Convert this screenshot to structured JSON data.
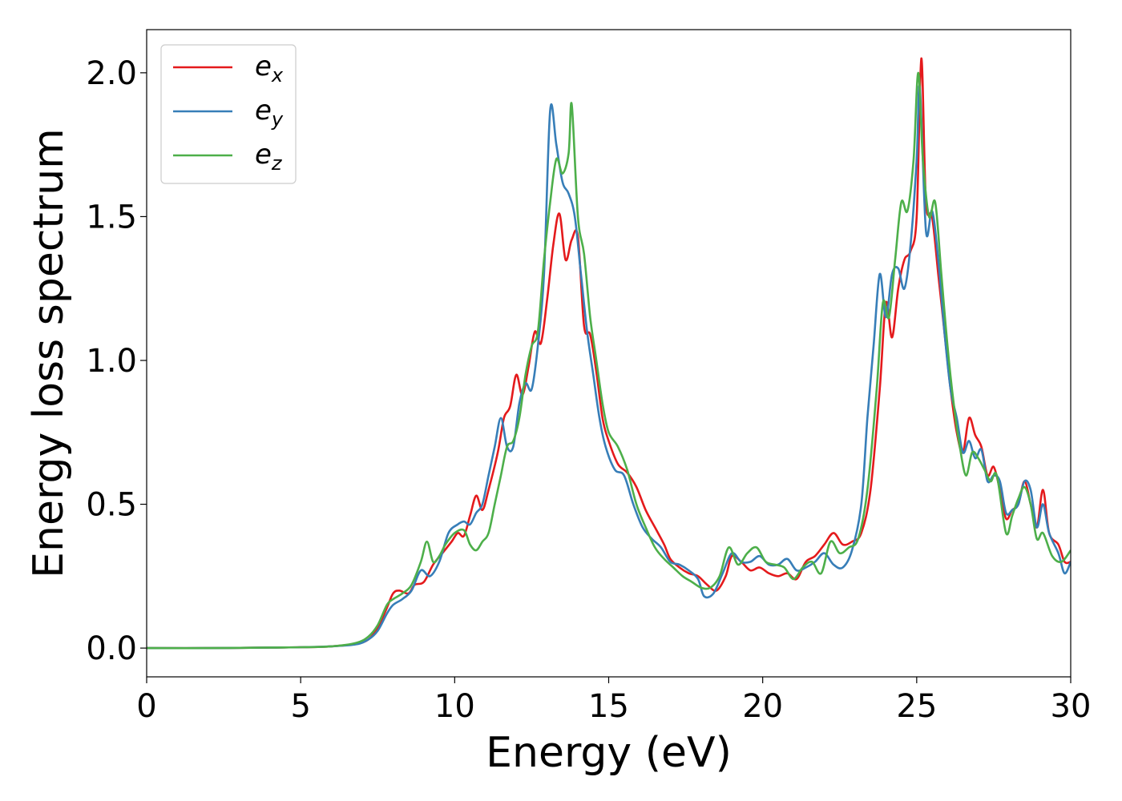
{
  "chart_data": {
    "type": "line",
    "xlabel": "Energy (eV)",
    "ylabel": "Energy loss spectrum",
    "xlim": [
      0,
      30
    ],
    "ylim": [
      -0.1,
      2.15
    ],
    "xticks": [
      "0",
      "5",
      "10",
      "15",
      "20",
      "25",
      "30"
    ],
    "yticks": [
      "0.0",
      "0.5",
      "1.0",
      "1.5",
      "2.0"
    ],
    "legend_position": "top-left",
    "series": [
      {
        "name": "e_x",
        "base": "e",
        "sub": "x",
        "color": "#e41a1c",
        "points": [
          [
            0,
            0
          ],
          [
            2,
            0
          ],
          [
            4,
            0.002
          ],
          [
            5,
            0.003
          ],
          [
            6,
            0.006
          ],
          [
            6.8,
            0.015
          ],
          [
            7.2,
            0.03
          ],
          [
            7.5,
            0.07
          ],
          [
            7.8,
            0.14
          ],
          [
            8.0,
            0.19
          ],
          [
            8.2,
            0.2
          ],
          [
            8.5,
            0.19
          ],
          [
            8.7,
            0.22
          ],
          [
            9.0,
            0.23
          ],
          [
            9.3,
            0.29
          ],
          [
            9.6,
            0.33
          ],
          [
            9.9,
            0.37
          ],
          [
            10.1,
            0.4
          ],
          [
            10.3,
            0.39
          ],
          [
            10.5,
            0.46
          ],
          [
            10.7,
            0.53
          ],
          [
            10.9,
            0.48
          ],
          [
            11.1,
            0.55
          ],
          [
            11.4,
            0.68
          ],
          [
            11.6,
            0.8
          ],
          [
            11.8,
            0.84
          ],
          [
            12.0,
            0.95
          ],
          [
            12.2,
            0.88
          ],
          [
            12.4,
            0.98
          ],
          [
            12.6,
            1.1
          ],
          [
            12.8,
            1.06
          ],
          [
            13.0,
            1.21
          ],
          [
            13.2,
            1.4
          ],
          [
            13.4,
            1.51
          ],
          [
            13.6,
            1.35
          ],
          [
            13.8,
            1.42
          ],
          [
            14.0,
            1.43
          ],
          [
            14.2,
            1.12
          ],
          [
            14.4,
            1.09
          ],
          [
            14.6,
            0.96
          ],
          [
            14.8,
            0.8
          ],
          [
            15.0,
            0.72
          ],
          [
            15.3,
            0.64
          ],
          [
            15.6,
            0.61
          ],
          [
            15.9,
            0.56
          ],
          [
            16.2,
            0.48
          ],
          [
            16.5,
            0.42
          ],
          [
            16.8,
            0.36
          ],
          [
            17.0,
            0.31
          ],
          [
            17.3,
            0.28
          ],
          [
            17.6,
            0.26
          ],
          [
            17.9,
            0.25
          ],
          [
            18.2,
            0.22
          ],
          [
            18.5,
            0.2
          ],
          [
            18.8,
            0.25
          ],
          [
            19.0,
            0.32
          ],
          [
            19.3,
            0.3
          ],
          [
            19.6,
            0.27
          ],
          [
            19.9,
            0.28
          ],
          [
            20.2,
            0.26
          ],
          [
            20.5,
            0.25
          ],
          [
            20.8,
            0.26
          ],
          [
            21.1,
            0.24
          ],
          [
            21.4,
            0.3
          ],
          [
            21.7,
            0.32
          ],
          [
            22.0,
            0.36
          ],
          [
            22.3,
            0.4
          ],
          [
            22.6,
            0.36
          ],
          [
            22.9,
            0.37
          ],
          [
            23.2,
            0.4
          ],
          [
            23.5,
            0.55
          ],
          [
            23.8,
            0.9
          ],
          [
            24.0,
            1.2
          ],
          [
            24.2,
            1.08
          ],
          [
            24.4,
            1.25
          ],
          [
            24.6,
            1.35
          ],
          [
            24.8,
            1.38
          ],
          [
            25.0,
            1.5
          ],
          [
            25.15,
            2.05
          ],
          [
            25.3,
            1.55
          ],
          [
            25.5,
            1.5
          ],
          [
            25.7,
            1.3
          ],
          [
            25.9,
            1.1
          ],
          [
            26.1,
            0.9
          ],
          [
            26.3,
            0.75
          ],
          [
            26.5,
            0.68
          ],
          [
            26.7,
            0.8
          ],
          [
            26.9,
            0.74
          ],
          [
            27.1,
            0.7
          ],
          [
            27.3,
            0.6
          ],
          [
            27.5,
            0.63
          ],
          [
            27.7,
            0.55
          ],
          [
            27.9,
            0.45
          ],
          [
            28.1,
            0.48
          ],
          [
            28.3,
            0.5
          ],
          [
            28.5,
            0.58
          ],
          [
            28.7,
            0.5
          ],
          [
            28.9,
            0.42
          ],
          [
            29.1,
            0.55
          ],
          [
            29.3,
            0.4
          ],
          [
            29.6,
            0.36
          ],
          [
            29.8,
            0.3
          ],
          [
            30,
            0.3
          ]
        ]
      },
      {
        "name": "e_y",
        "base": "e",
        "sub": "y",
        "color": "#377eb8",
        "points": [
          [
            0,
            0
          ],
          [
            2,
            0
          ],
          [
            4,
            0.002
          ],
          [
            5,
            0.003
          ],
          [
            6,
            0.006
          ],
          [
            6.8,
            0.013
          ],
          [
            7.2,
            0.03
          ],
          [
            7.5,
            0.06
          ],
          [
            7.8,
            0.12
          ],
          [
            8.0,
            0.15
          ],
          [
            8.3,
            0.17
          ],
          [
            8.6,
            0.2
          ],
          [
            8.9,
            0.27
          ],
          [
            9.2,
            0.25
          ],
          [
            9.5,
            0.3
          ],
          [
            9.8,
            0.4
          ],
          [
            10.1,
            0.43
          ],
          [
            10.3,
            0.44
          ],
          [
            10.5,
            0.43
          ],
          [
            10.7,
            0.47
          ],
          [
            10.9,
            0.5
          ],
          [
            11.1,
            0.6
          ],
          [
            11.3,
            0.7
          ],
          [
            11.5,
            0.8
          ],
          [
            11.7,
            0.7
          ],
          [
            11.9,
            0.7
          ],
          [
            12.1,
            0.85
          ],
          [
            12.3,
            0.92
          ],
          [
            12.5,
            0.9
          ],
          [
            12.7,
            1.05
          ],
          [
            12.9,
            1.3
          ],
          [
            13.1,
            1.87
          ],
          [
            13.3,
            1.75
          ],
          [
            13.5,
            1.62
          ],
          [
            13.7,
            1.58
          ],
          [
            13.9,
            1.5
          ],
          [
            14.1,
            1.3
          ],
          [
            14.3,
            1.1
          ],
          [
            14.5,
            0.95
          ],
          [
            14.7,
            0.8
          ],
          [
            14.9,
            0.7
          ],
          [
            15.2,
            0.62
          ],
          [
            15.5,
            0.6
          ],
          [
            15.8,
            0.5
          ],
          [
            16.1,
            0.42
          ],
          [
            16.4,
            0.38
          ],
          [
            16.7,
            0.35
          ],
          [
            17.0,
            0.3
          ],
          [
            17.3,
            0.29
          ],
          [
            17.6,
            0.27
          ],
          [
            17.9,
            0.24
          ],
          [
            18.1,
            0.18
          ],
          [
            18.4,
            0.19
          ],
          [
            18.7,
            0.26
          ],
          [
            19.0,
            0.33
          ],
          [
            19.3,
            0.3
          ],
          [
            19.6,
            0.3
          ],
          [
            19.9,
            0.32
          ],
          [
            20.2,
            0.29
          ],
          [
            20.5,
            0.29
          ],
          [
            20.8,
            0.31
          ],
          [
            21.1,
            0.27
          ],
          [
            21.4,
            0.28
          ],
          [
            21.7,
            0.3
          ],
          [
            22.0,
            0.33
          ],
          [
            22.3,
            0.29
          ],
          [
            22.6,
            0.28
          ],
          [
            22.9,
            0.34
          ],
          [
            23.2,
            0.5
          ],
          [
            23.4,
            0.8
          ],
          [
            23.6,
            1.05
          ],
          [
            23.8,
            1.3
          ],
          [
            24.0,
            1.15
          ],
          [
            24.2,
            1.3
          ],
          [
            24.4,
            1.32
          ],
          [
            24.6,
            1.25
          ],
          [
            24.8,
            1.4
          ],
          [
            25.0,
            1.7
          ],
          [
            25.1,
            1.95
          ],
          [
            25.3,
            1.45
          ],
          [
            25.5,
            1.52
          ],
          [
            25.7,
            1.35
          ],
          [
            25.9,
            1.1
          ],
          [
            26.1,
            0.9
          ],
          [
            26.3,
            0.8
          ],
          [
            26.5,
            0.68
          ],
          [
            26.7,
            0.72
          ],
          [
            26.9,
            0.66
          ],
          [
            27.1,
            0.69
          ],
          [
            27.3,
            0.58
          ],
          [
            27.5,
            0.6
          ],
          [
            27.7,
            0.58
          ],
          [
            27.9,
            0.47
          ],
          [
            28.1,
            0.48
          ],
          [
            28.3,
            0.5
          ],
          [
            28.5,
            0.58
          ],
          [
            28.7,
            0.55
          ],
          [
            28.9,
            0.42
          ],
          [
            29.1,
            0.5
          ],
          [
            29.3,
            0.4
          ],
          [
            29.6,
            0.33
          ],
          [
            29.8,
            0.26
          ],
          [
            30,
            0.3
          ]
        ]
      },
      {
        "name": "e_z",
        "base": "e",
        "sub": "z",
        "color": "#4daf4a",
        "points": [
          [
            0,
            0
          ],
          [
            2,
            0
          ],
          [
            4,
            0.002
          ],
          [
            5,
            0.003
          ],
          [
            6,
            0.006
          ],
          [
            6.8,
            0.018
          ],
          [
            7.2,
            0.04
          ],
          [
            7.5,
            0.08
          ],
          [
            7.8,
            0.15
          ],
          [
            8.0,
            0.17
          ],
          [
            8.3,
            0.19
          ],
          [
            8.6,
            0.22
          ],
          [
            8.9,
            0.3
          ],
          [
            9.1,
            0.37
          ],
          [
            9.3,
            0.3
          ],
          [
            9.5,
            0.32
          ],
          [
            9.7,
            0.36
          ],
          [
            10.0,
            0.4
          ],
          [
            10.3,
            0.41
          ],
          [
            10.5,
            0.36
          ],
          [
            10.7,
            0.34
          ],
          [
            10.9,
            0.37
          ],
          [
            11.1,
            0.4
          ],
          [
            11.3,
            0.5
          ],
          [
            11.5,
            0.6
          ],
          [
            11.7,
            0.7
          ],
          [
            11.9,
            0.72
          ],
          [
            12.1,
            0.8
          ],
          [
            12.3,
            0.95
          ],
          [
            12.5,
            1.05
          ],
          [
            12.7,
            1.1
          ],
          [
            12.9,
            1.35
          ],
          [
            13.1,
            1.55
          ],
          [
            13.3,
            1.7
          ],
          [
            13.5,
            1.65
          ],
          [
            13.7,
            1.72
          ],
          [
            13.8,
            1.89
          ],
          [
            14.0,
            1.5
          ],
          [
            14.2,
            1.37
          ],
          [
            14.4,
            1.15
          ],
          [
            14.6,
            1.0
          ],
          [
            14.8,
            0.85
          ],
          [
            15.0,
            0.75
          ],
          [
            15.3,
            0.7
          ],
          [
            15.6,
            0.62
          ],
          [
            15.9,
            0.5
          ],
          [
            16.2,
            0.42
          ],
          [
            16.5,
            0.35
          ],
          [
            16.8,
            0.31
          ],
          [
            17.1,
            0.28
          ],
          [
            17.4,
            0.25
          ],
          [
            17.7,
            0.23
          ],
          [
            18.0,
            0.21
          ],
          [
            18.3,
            0.21
          ],
          [
            18.6,
            0.25
          ],
          [
            18.9,
            0.35
          ],
          [
            19.2,
            0.29
          ],
          [
            19.5,
            0.33
          ],
          [
            19.8,
            0.35
          ],
          [
            20.1,
            0.3
          ],
          [
            20.4,
            0.29
          ],
          [
            20.7,
            0.28
          ],
          [
            21.0,
            0.24
          ],
          [
            21.3,
            0.28
          ],
          [
            21.6,
            0.3
          ],
          [
            21.9,
            0.26
          ],
          [
            22.2,
            0.37
          ],
          [
            22.5,
            0.33
          ],
          [
            22.8,
            0.35
          ],
          [
            23.1,
            0.38
          ],
          [
            23.4,
            0.55
          ],
          [
            23.7,
            0.9
          ],
          [
            23.9,
            1.2
          ],
          [
            24.1,
            1.15
          ],
          [
            24.3,
            1.35
          ],
          [
            24.5,
            1.55
          ],
          [
            24.7,
            1.52
          ],
          [
            24.9,
            1.7
          ],
          [
            25.05,
            2.0
          ],
          [
            25.2,
            1.7
          ],
          [
            25.4,
            1.5
          ],
          [
            25.6,
            1.55
          ],
          [
            25.8,
            1.3
          ],
          [
            26.0,
            1.05
          ],
          [
            26.2,
            0.85
          ],
          [
            26.4,
            0.7
          ],
          [
            26.6,
            0.6
          ],
          [
            26.8,
            0.68
          ],
          [
            27.0,
            0.66
          ],
          [
            27.2,
            0.62
          ],
          [
            27.4,
            0.58
          ],
          [
            27.6,
            0.6
          ],
          [
            27.9,
            0.4
          ],
          [
            28.1,
            0.46
          ],
          [
            28.3,
            0.52
          ],
          [
            28.5,
            0.56
          ],
          [
            28.7,
            0.5
          ],
          [
            28.9,
            0.38
          ],
          [
            29.1,
            0.4
          ],
          [
            29.4,
            0.32
          ],
          [
            29.7,
            0.3
          ],
          [
            30,
            0.34
          ]
        ]
      }
    ]
  }
}
